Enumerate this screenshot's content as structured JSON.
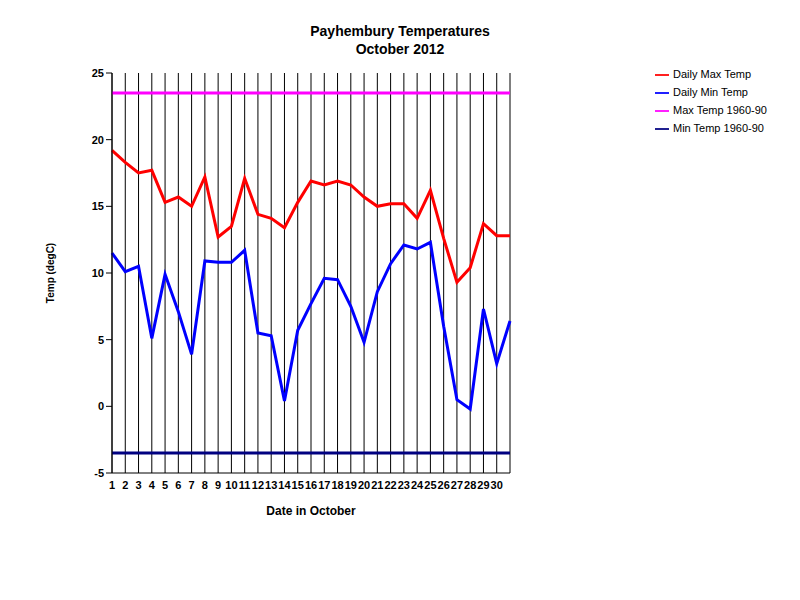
{
  "chart_data": {
    "type": "line",
    "title": "Payhembury Temperatures",
    "subtitle": "October 2012",
    "x_label": "Date in October",
    "y_label": "Temp (degC)",
    "categories": [
      "1",
      "2",
      "3",
      "4",
      "5",
      "6",
      "7",
      "8",
      "9",
      "10",
      "11",
      "12",
      "13",
      "14",
      "15",
      "16",
      "17",
      "18",
      "19",
      "20",
      "21",
      "22",
      "23",
      "24",
      "25",
      "26",
      "27",
      "28",
      "29",
      "30",
      null
    ],
    "series": [
      {
        "name": "Daily Max Temp",
        "color": "#ff0000",
        "values": [
          19.2,
          18.3,
          17.5,
          17.7,
          15.3,
          15.7,
          15.0,
          17.2,
          12.7,
          13.5,
          17.1,
          14.4,
          14.1,
          13.4,
          15.3,
          16.9,
          16.6,
          16.9,
          16.6,
          15.7,
          15.0,
          15.2,
          15.2,
          14.1,
          16.2,
          12.6,
          9.3,
          10.4,
          13.7,
          12.8,
          12.8
        ]
      },
      {
        "name": "Daily Min Temp",
        "color": "#0000ff",
        "values": [
          11.5,
          10.1,
          10.5,
          5.1,
          9.9,
          7.1,
          3.9,
          10.9,
          10.8,
          10.8,
          11.7,
          5.5,
          5.3,
          0.4,
          5.7,
          7.7,
          9.6,
          9.5,
          7.5,
          4.8,
          8.6,
          10.7,
          12.1,
          11.8,
          12.3,
          6.0,
          0.5,
          -0.2,
          7.3,
          3.2,
          6.4
        ]
      },
      {
        "name": "Max Temp 1960-90",
        "color": "#ff00ff",
        "values": [
          23.5,
          23.5,
          23.5,
          23.5,
          23.5,
          23.5,
          23.5,
          23.5,
          23.5,
          23.5,
          23.5,
          23.5,
          23.5,
          23.5,
          23.5,
          23.5,
          23.5,
          23.5,
          23.5,
          23.5,
          23.5,
          23.5,
          23.5,
          23.5,
          23.5,
          23.5,
          23.5,
          23.5,
          23.5,
          23.5,
          23.5
        ]
      },
      {
        "name": "Min Temp 1960-90",
        "color": "#000080",
        "values": [
          -3.5,
          -3.5,
          -3.5,
          -3.5,
          -3.5,
          -3.5,
          -3.5,
          -3.5,
          -3.5,
          -3.5,
          -3.5,
          -3.5,
          -3.5,
          -3.5,
          -3.5,
          -3.5,
          -3.5,
          -3.5,
          -3.5,
          -3.5,
          -3.5,
          -3.5,
          -3.5,
          -3.5,
          -3.5,
          -3.5,
          -3.5,
          -3.5,
          -3.5,
          -3.5,
          -3.5
        ]
      }
    ],
    "ylim": [
      -5,
      25
    ],
    "yticks": [
      -5,
      0,
      5,
      10,
      15,
      20,
      25
    ],
    "grid": true,
    "legend": "right",
    "marker": "none",
    "line_style": "solid"
  }
}
